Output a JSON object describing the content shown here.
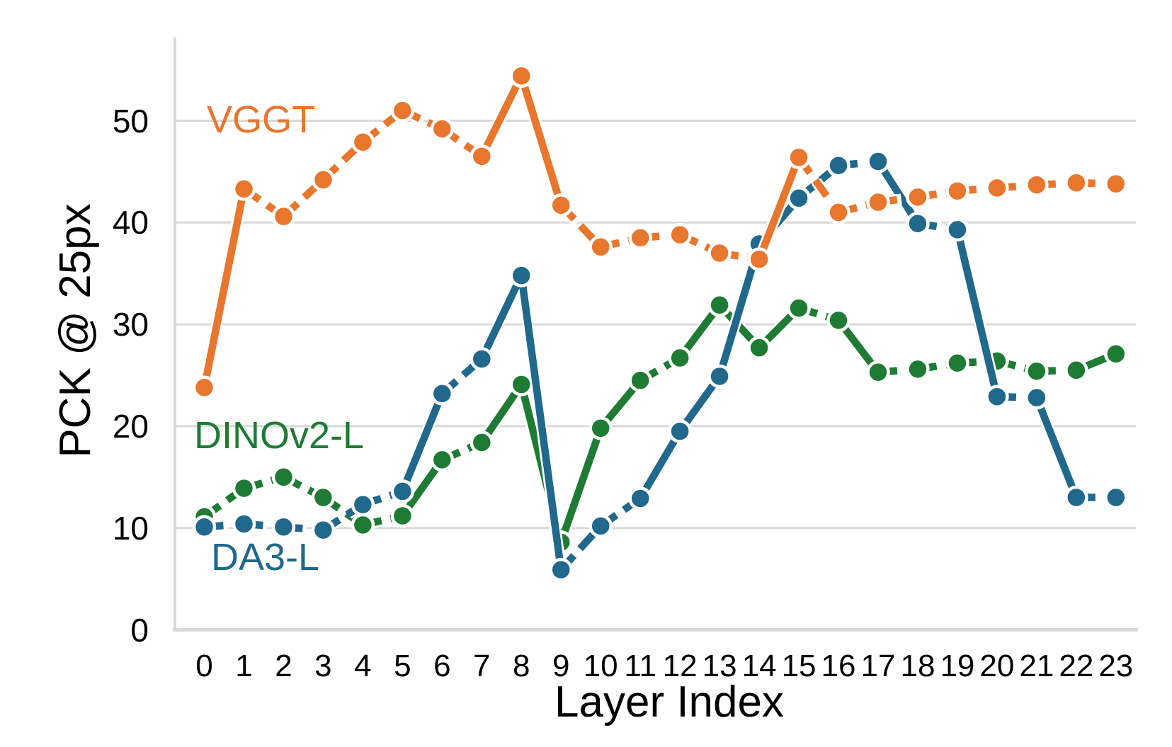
{
  "chart_data": {
    "type": "line",
    "title": "",
    "xlabel": "Layer Index",
    "ylabel": "PCK @ 25px",
    "x": [
      0,
      1,
      2,
      3,
      4,
      5,
      6,
      7,
      8,
      9,
      10,
      11,
      12,
      13,
      14,
      15,
      16,
      17,
      18,
      19,
      20,
      21,
      22,
      23
    ],
    "yticks": [
      0,
      10,
      20,
      30,
      40,
      50
    ],
    "ylim": [
      0,
      57
    ],
    "grid": "horizontal-only",
    "legend": "inline-colored-labels",
    "background_color": "#ffffff",
    "gridline_color": "#d9d9d9",
    "text_color": "#000000",
    "series": [
      {
        "name": "VGGT",
        "color": "#E8762D",
        "marker": "circle",
        "values": [
          23.8,
          43.3,
          40.6,
          44.2,
          47.9,
          51.0,
          49.2,
          46.5,
          54.4,
          41.7,
          37.6,
          38.5,
          38.8,
          37.0,
          36.4,
          46.4,
          41.0,
          42.0,
          42.5,
          43.1,
          43.4,
          43.7,
          43.9,
          43.8
        ],
        "segment_styles": "sddddddssdddddsdddddddd"
      },
      {
        "name": "DA3-L",
        "color": "#20688C",
        "marker": "circle",
        "values": [
          10.1,
          10.4,
          10.1,
          9.8,
          12.3,
          13.6,
          23.2,
          26.6,
          34.8,
          5.9,
          10.2,
          12.9,
          19.5,
          24.9,
          37.9,
          42.4,
          45.6,
          46.0,
          39.9,
          39.3,
          22.9,
          22.8,
          13.0,
          13.0
        ],
        "segment_styles": "dddddsdssddssssddsdsdsd"
      },
      {
        "name": "DINOv2-L",
        "color": "#1E7B34",
        "marker": "circle",
        "values": [
          11.1,
          13.9,
          15.0,
          13.0,
          10.3,
          11.2,
          16.7,
          18.4,
          24.1,
          8.6,
          19.8,
          24.5,
          26.7,
          31.9,
          27.7,
          31.6,
          30.4,
          25.3,
          25.6,
          26.2,
          26.4,
          25.4,
          25.5,
          27.1
        ],
        "segment_styles": "dddddsdssssdsssdsddddds"
      }
    ]
  }
}
